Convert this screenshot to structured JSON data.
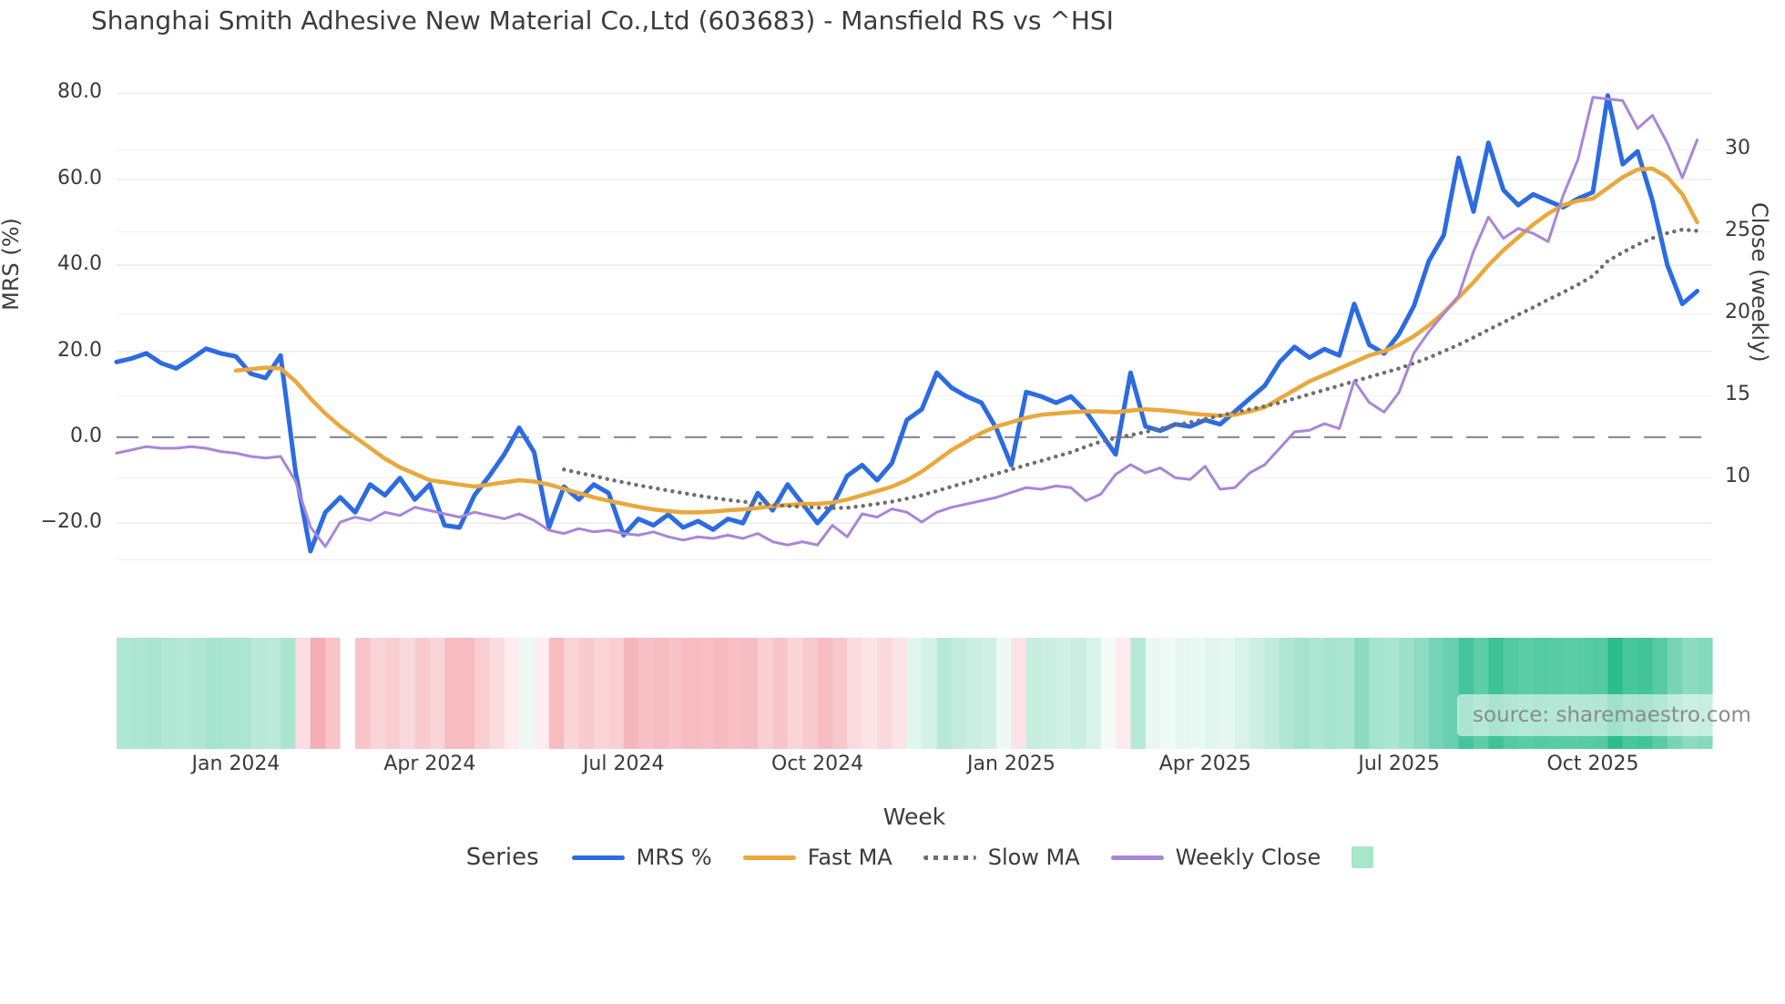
{
  "title": "Shanghai Smith Adhesive New Material Co.,Ltd (603683) - Mansfield RS vs ^HSI",
  "source_label": "source: sharemaestro.com",
  "axes": {
    "left": {
      "label": "MRS (%)",
      "tick_labels": [
        "80.0",
        "60.0",
        "40.0",
        "20.0",
        "0.0",
        "−20.0"
      ],
      "tick_values": [
        80,
        60,
        40,
        20,
        0,
        -20
      ]
    },
    "right": {
      "label": "Close (weekly)",
      "tick_labels": [
        "30",
        "25",
        "20",
        "15",
        "10"
      ],
      "tick_values": [
        30,
        25,
        20,
        15,
        10
      ]
    },
    "x": {
      "label": "Week",
      "tick_labels": [
        "Jan 2024",
        "Apr 2024",
        "Jul 2024",
        "Oct 2024",
        "Jan 2025",
        "Apr 2025",
        "Jul 2025",
        "Oct 2025"
      ],
      "tick_weeks": [
        8,
        21,
        34,
        47,
        60,
        73,
        86,
        99
      ]
    }
  },
  "legend": {
    "heading": "Series",
    "items": [
      {
        "label": "MRS %",
        "style": "solid",
        "color": "#2c6be2"
      },
      {
        "label": "Fast MA",
        "style": "solid",
        "color": "#e8a83c"
      },
      {
        "label": "Slow MA",
        "style": "dotted",
        "color": "#6e6e6e"
      },
      {
        "label": "Weekly Close",
        "style": "solid",
        "color": "#a886d8"
      }
    ],
    "heatmap_swatch_color": "#a7e6c8"
  },
  "chart_data": {
    "type": "line",
    "title": "Shanghai Smith Adhesive New Material Co.,Ltd (603683) - Mansfield RS vs ^HSI",
    "xlabel": "Week",
    "ylabel_left": "MRS (%)",
    "ylabel_right": "Close (weekly)",
    "x_unit": "weekly index, 107 weeks (Nov 2023 - Nov 2025)",
    "n_weeks": 107,
    "x_tick_weeks": [
      8,
      21,
      34,
      47,
      60,
      73,
      86,
      99
    ],
    "x_tick_labels": [
      "Jan 2024",
      "Apr 2024",
      "Jul 2024",
      "Oct 2024",
      "Jan 2025",
      "Apr 2025",
      "Jul 2025",
      "Oct 2025"
    ],
    "ylim_left": [
      -35,
      89
    ],
    "ylim_right": [
      3.3,
      35.8
    ],
    "grid": true,
    "zero_line": {
      "axis": "left",
      "value": 0,
      "style": "dashed",
      "color": "#8a8d9c"
    },
    "series": [
      {
        "name": "MRS %",
        "axis": "left",
        "color": "#2c6be2",
        "style": "solid",
        "width": 5,
        "values": [
          17.5,
          18.3,
          19.5,
          17.2,
          16.0,
          18.2,
          20.6,
          19.5,
          18.8,
          14.8,
          13.8,
          19.0,
          -8.0,
          -26.5,
          -17.5,
          -14.0,
          -17.5,
          -11.0,
          -13.5,
          -9.5,
          -14.5,
          -11.0,
          -20.5,
          -21.0,
          -13.5,
          -9.0,
          -4.0,
          2.2,
          -3.5,
          -21.0,
          -11.5,
          -14.5,
          -11.0,
          -13.0,
          -22.8,
          -19.0,
          -20.5,
          -18.0,
          -21.0,
          -19.5,
          -21.5,
          -19.0,
          -20.0,
          -13.0,
          -17.0,
          -11.0,
          -15.5,
          -20.0,
          -16.0,
          -9.0,
          -6.5,
          -10.0,
          -6.0,
          4.0,
          6.5,
          15.0,
          11.5,
          9.5,
          8.0,
          2.0,
          -6.5,
          10.5,
          9.5,
          8.0,
          9.5,
          6.0,
          1.0,
          -4.0,
          15.0,
          2.5,
          1.5,
          3.0,
          2.5,
          4.0,
          3.0,
          6.0,
          9.0,
          12.0,
          17.5,
          21.0,
          18.5,
          20.5,
          19.0,
          31.0,
          21.5,
          19.5,
          24.0,
          30.5,
          41.0,
          47.0,
          65.0,
          52.5,
          68.5,
          57.5,
          54.0,
          56.5,
          55.0,
          53.5,
          55.5,
          57.0,
          79.5,
          63.5,
          66.5,
          55.0,
          40.0,
          31.0,
          34.0
        ]
      },
      {
        "name": "Fast MA",
        "axis": "left",
        "color": "#e8a83c",
        "style": "solid",
        "width": 4.5,
        "values": [
          null,
          null,
          null,
          null,
          null,
          null,
          null,
          null,
          15.5,
          15.8,
          16.2,
          16.0,
          13.0,
          9.0,
          5.5,
          2.5,
          0.0,
          -2.5,
          -5.0,
          -7.0,
          -8.5,
          -10.0,
          -10.5,
          -11.0,
          -11.5,
          -11.0,
          -10.5,
          -10.0,
          -10.3,
          -11.0,
          -12.0,
          -13.0,
          -14.0,
          -14.8,
          -15.5,
          -16.2,
          -16.8,
          -17.2,
          -17.5,
          -17.5,
          -17.3,
          -17.0,
          -16.8,
          -16.5,
          -16.0,
          -15.8,
          -15.5,
          -15.5,
          -15.2,
          -14.5,
          -13.5,
          -12.5,
          -11.5,
          -10.0,
          -8.0,
          -5.5,
          -3.0,
          -1.0,
          1.0,
          2.5,
          3.5,
          4.5,
          5.2,
          5.5,
          5.8,
          6.0,
          6.0,
          5.8,
          6.2,
          6.5,
          6.3,
          6.0,
          5.5,
          5.2,
          5.0,
          5.2,
          6.0,
          7.0,
          9.0,
          11.0,
          13.0,
          14.5,
          16.0,
          17.5,
          19.0,
          20.0,
          21.5,
          23.5,
          26.0,
          29.0,
          32.5,
          36.0,
          40.0,
          43.5,
          46.5,
          49.5,
          52.0,
          54.0,
          55.0,
          55.5,
          58.0,
          60.5,
          62.3,
          62.5,
          60.5,
          56.5,
          50.0
        ]
      },
      {
        "name": "Slow MA",
        "axis": "left",
        "color": "#6e6e6e",
        "style": "dotted",
        "width": 4,
        "values": [
          null,
          null,
          null,
          null,
          null,
          null,
          null,
          null,
          null,
          null,
          null,
          null,
          null,
          null,
          null,
          null,
          null,
          null,
          null,
          null,
          null,
          null,
          null,
          null,
          null,
          null,
          null,
          null,
          null,
          null,
          -7.5,
          -8.3,
          -9.0,
          -9.8,
          -10.5,
          -11.2,
          -11.8,
          -12.4,
          -13.0,
          -13.6,
          -14.1,
          -14.6,
          -15.0,
          -15.4,
          -15.7,
          -16.0,
          -16.2,
          -16.4,
          -16.5,
          -16.4,
          -16.0,
          -15.5,
          -15.0,
          -14.3,
          -13.5,
          -12.5,
          -11.5,
          -10.5,
          -9.5,
          -8.5,
          -7.5,
          -6.5,
          -5.5,
          -4.5,
          -3.5,
          -2.2,
          -1.0,
          -0.2,
          0.5,
          1.2,
          2.0,
          2.8,
          3.5,
          4.2,
          5.0,
          5.8,
          6.5,
          7.2,
          8.0,
          9.0,
          10.0,
          11.0,
          12.0,
          13.0,
          14.0,
          15.0,
          16.0,
          17.2,
          18.5,
          20.0,
          21.5,
          23.2,
          25.0,
          26.7,
          28.5,
          30.2,
          32.0,
          33.7,
          35.5,
          37.5,
          41.0,
          43.0,
          44.8,
          46.3,
          47.5,
          48.3,
          48.0
        ]
      },
      {
        "name": "Weekly Close",
        "axis": "right",
        "color": "#a886d8",
        "style": "solid",
        "width": 3,
        "values": [
          11.5,
          11.7,
          11.9,
          11.8,
          11.8,
          11.9,
          11.8,
          11.6,
          11.5,
          11.3,
          11.2,
          11.3,
          9.8,
          7.0,
          5.8,
          7.3,
          7.6,
          7.4,
          7.9,
          7.7,
          8.2,
          8.0,
          7.8,
          7.6,
          7.9,
          7.7,
          7.5,
          7.8,
          7.4,
          6.8,
          6.6,
          6.9,
          6.7,
          6.8,
          6.6,
          6.5,
          6.7,
          6.4,
          6.2,
          6.4,
          6.3,
          6.5,
          6.3,
          6.6,
          6.1,
          5.9,
          6.1,
          5.9,
          7.1,
          6.4,
          7.8,
          7.6,
          8.1,
          7.9,
          7.3,
          7.9,
          8.2,
          8.4,
          8.6,
          8.8,
          9.1,
          9.4,
          9.3,
          9.5,
          9.4,
          8.6,
          9.0,
          10.2,
          10.8,
          10.3,
          10.6,
          10.0,
          9.9,
          10.7,
          9.3,
          9.4,
          10.3,
          10.8,
          11.8,
          12.8,
          12.9,
          13.3,
          13.0,
          15.9,
          14.6,
          14.0,
          15.2,
          17.6,
          18.9,
          20.0,
          21.1,
          23.8,
          25.9,
          24.6,
          25.2,
          24.9,
          24.4,
          27.2,
          29.4,
          33.2,
          33.1,
          33.0,
          31.3,
          32.1,
          30.4,
          28.3,
          30.6
        ]
      }
    ],
    "heatmap_strip": {
      "derived_from": "MRS %",
      "positive_color": "#2abd8c",
      "negative_color": "#f4a6ad",
      "positive_full_scale": 80,
      "negative_full_scale": 30,
      "blank_weeks": [
        15
      ]
    }
  }
}
